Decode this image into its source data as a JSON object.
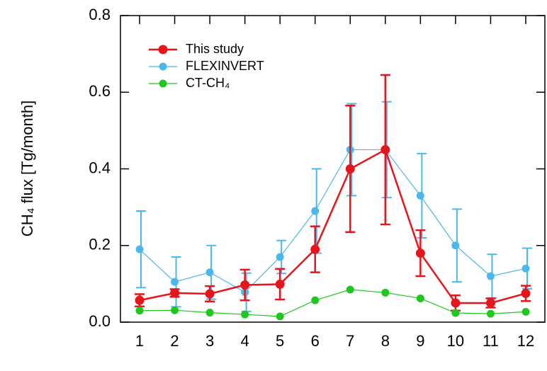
{
  "chart_data": {
    "type": "line",
    "y_label": "CH₄ flux [Tg/month]",
    "categories": [
      "1",
      "2",
      "3",
      "4",
      "5",
      "6",
      "7",
      "8",
      "9",
      "10",
      "11",
      "12"
    ],
    "series": [
      {
        "name": "This study",
        "color": "#e8141c",
        "values": [
          0.057,
          0.076,
          0.074,
          0.097,
          0.099,
          0.19,
          0.4,
          0.45,
          0.18,
          0.05,
          0.05,
          0.075
        ],
        "errors": [
          0.016,
          0.01,
          0.02,
          0.04,
          0.04,
          0.06,
          0.165,
          0.195,
          0.06,
          0.02,
          0.012,
          0.02
        ]
      },
      {
        "name": "FLEXINVERT",
        "color": "#4ab8ec",
        "values": [
          0.19,
          0.105,
          0.13,
          0.078,
          0.17,
          0.29,
          0.45,
          0.45,
          0.33,
          0.2,
          0.12,
          0.14
        ],
        "errors": [
          0.1,
          0.065,
          0.07,
          0.05,
          0.043,
          0.11,
          0.12,
          0.125,
          0.11,
          0.095,
          0.057,
          0.053
        ]
      },
      {
        "name": "CT-CH₄",
        "color": "#1ec81e",
        "values": [
          0.03,
          0.031,
          0.025,
          0.02,
          0.015,
          0.057,
          0.085,
          0.077,
          0.062,
          0.024,
          0.022,
          0.027
        ]
      }
    ],
    "ylim": [
      0,
      0.8
    ],
    "yticks": [
      {
        "value": 0,
        "label": "0.0"
      },
      {
        "value": 0.2,
        "label": "0.2"
      },
      {
        "value": 0.4,
        "label": "0.4"
      },
      {
        "value": 0.6,
        "label": "0.6"
      },
      {
        "value": 0.8,
        "label": "0.8"
      }
    ],
    "legend": "upper-left"
  }
}
